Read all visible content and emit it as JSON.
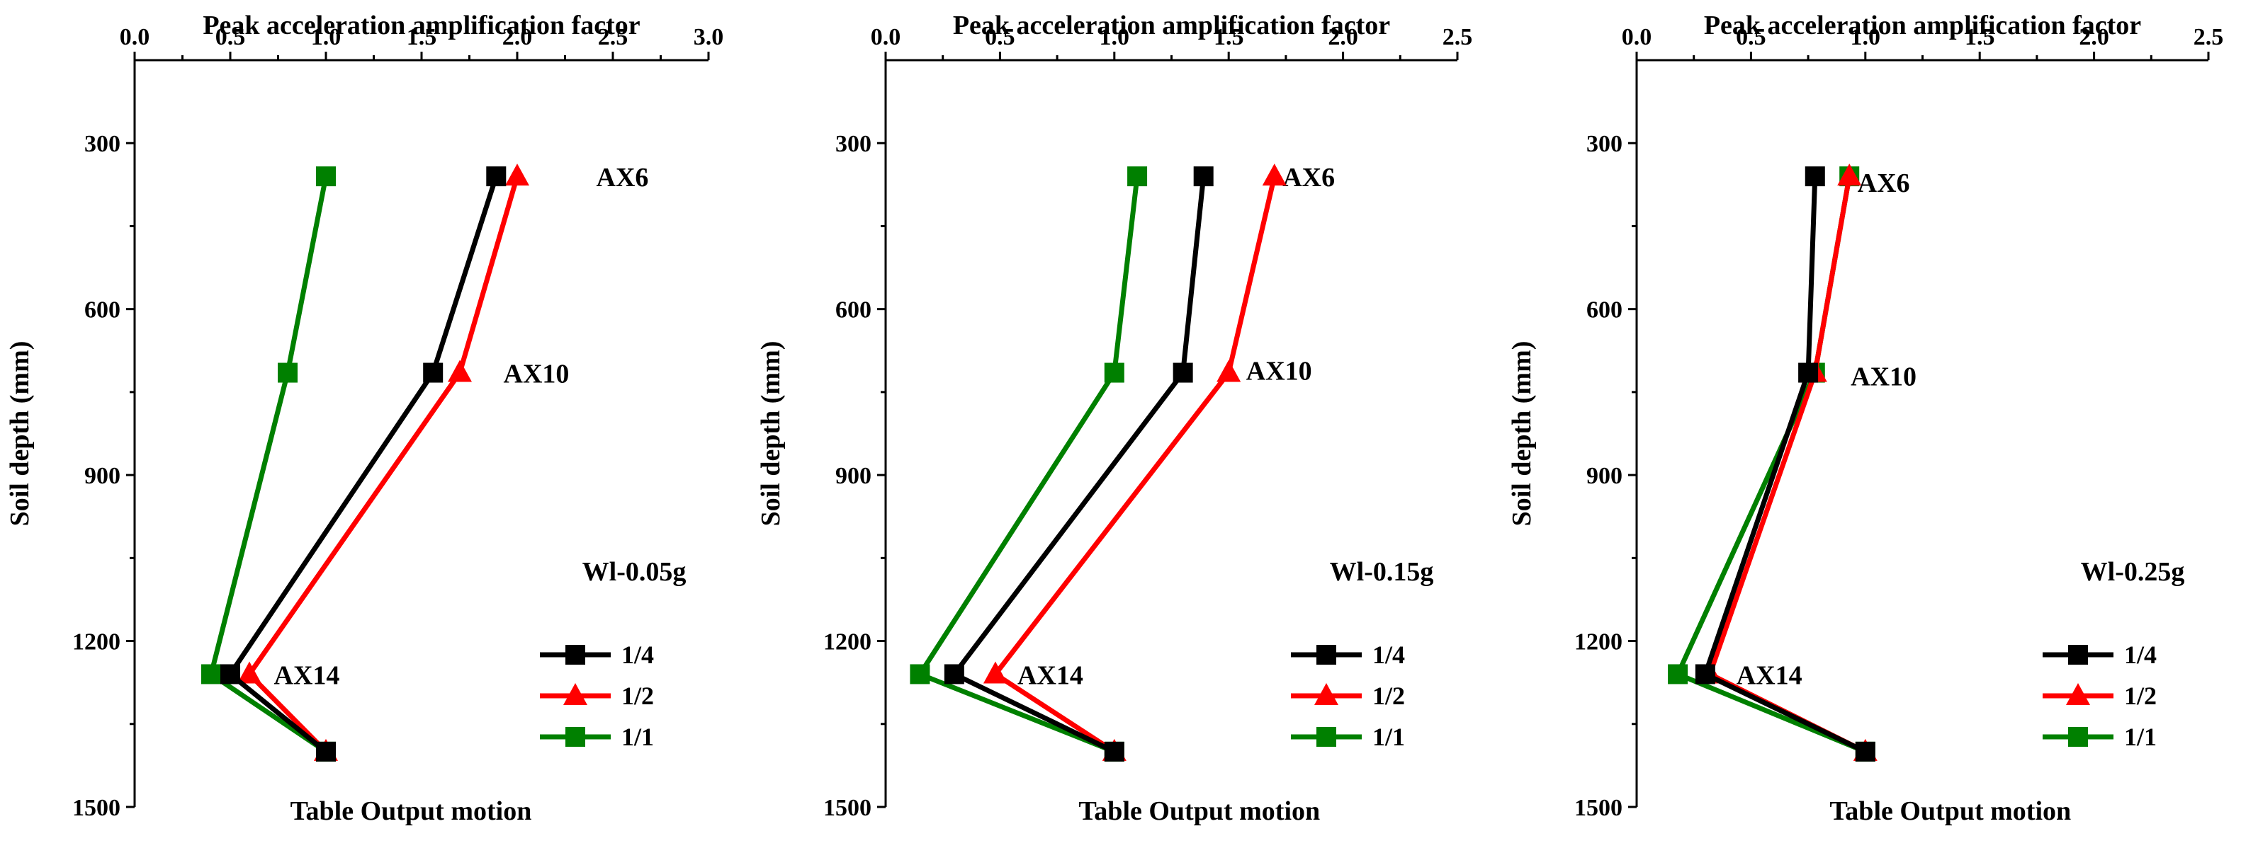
{
  "chart_data": [
    {
      "type": "line",
      "title": "",
      "top_axis_label": "Peak acceleration amplification factor",
      "ylabel": "Soil depth (mm)",
      "bottom_label": "Table Output motion",
      "xlim": [
        0,
        3.0
      ],
      "x_ticks": [
        "0.0",
        "0.5",
        "1.0",
        "1.5",
        "2.0",
        "2.5",
        "3.0"
      ],
      "ylim": [
        1500,
        150
      ],
      "y_ticks": [
        "300",
        "600",
        "900",
        "1200",
        "1500"
      ],
      "condition_label": "Wl-0.05g",
      "annotations": [
        {
          "text": "AX6",
          "depth": 360,
          "x": 2.55
        },
        {
          "text": "AX10",
          "depth": 715,
          "x": 2.1
        },
        {
          "text": "AX14",
          "depth": 1260,
          "x": 0.9
        }
      ],
      "series": [
        {
          "name": "1/4",
          "marker": "square",
          "color": "#000000",
          "x": [
            1.89,
            1.56,
            0.5,
            1.0
          ],
          "depth": [
            360,
            715,
            1260,
            1400
          ]
        },
        {
          "name": "1/2",
          "marker": "triangle",
          "color": "#ff0000",
          "x": [
            2.0,
            1.7,
            0.6,
            1.0
          ],
          "depth": [
            360,
            715,
            1260,
            1400
          ]
        },
        {
          "name": "1/1",
          "marker": "square",
          "color": "#008000",
          "x": [
            1.0,
            0.8,
            0.4,
            1.0
          ],
          "depth": [
            360,
            715,
            1260,
            1400
          ]
        }
      ]
    },
    {
      "type": "line",
      "title": "",
      "top_axis_label": "Peak acceleration amplification factor",
      "ylabel": "Soil depth (mm)",
      "bottom_label": "Table Output motion",
      "xlim": [
        0,
        2.5
      ],
      "x_ticks": [
        "0.0",
        "0.5",
        "1.0",
        "1.5",
        "2.0",
        "2.5"
      ],
      "ylim": [
        1500,
        150
      ],
      "y_ticks": [
        "300",
        "600",
        "900",
        "1200",
        "1500"
      ],
      "condition_label": "Wl-0.15g",
      "annotations": [
        {
          "text": "AX6",
          "depth": 360,
          "x": 1.85
        },
        {
          "text": "AX10",
          "depth": 710,
          "x": 1.72
        },
        {
          "text": "AX14",
          "depth": 1260,
          "x": 0.72
        }
      ],
      "series": [
        {
          "name": "1/4",
          "marker": "square",
          "color": "#000000",
          "x": [
            1.39,
            1.3,
            0.3,
            1.0
          ],
          "depth": [
            360,
            715,
            1260,
            1400
          ]
        },
        {
          "name": "1/2",
          "marker": "triangle",
          "color": "#ff0000",
          "x": [
            1.7,
            1.5,
            0.48,
            1.0
          ],
          "depth": [
            360,
            715,
            1260,
            1400
          ]
        },
        {
          "name": "1/1",
          "marker": "square",
          "color": "#008000",
          "x": [
            1.1,
            1.0,
            0.15,
            1.0
          ],
          "depth": [
            360,
            715,
            1260,
            1400
          ]
        }
      ]
    },
    {
      "type": "line",
      "title": "",
      "top_axis_label": "Peak acceleration amplification factor",
      "ylabel": "Soil depth (mm)",
      "bottom_label": "Table Output motion",
      "xlim": [
        0,
        2.5
      ],
      "x_ticks": [
        "0.0",
        "0.5",
        "1.0",
        "1.5",
        "2.0",
        "2.5"
      ],
      "ylim": [
        1500,
        150
      ],
      "y_ticks": [
        "300",
        "600",
        "900",
        "1200",
        "1500"
      ],
      "condition_label": "Wl-0.25g",
      "annotations": [
        {
          "text": "AX6",
          "depth": 370,
          "x": 1.08
        },
        {
          "text": "AX10",
          "depth": 720,
          "x": 1.08
        },
        {
          "text": "AX14",
          "depth": 1260,
          "x": 0.58
        }
      ],
      "series": [
        {
          "name": "1/4",
          "marker": "square",
          "color": "#000000",
          "x": [
            0.78,
            0.75,
            0.3,
            1.0
          ],
          "depth": [
            360,
            715,
            1260,
            1400
          ]
        },
        {
          "name": "1/2",
          "marker": "triangle",
          "color": "#ff0000",
          "x": [
            0.93,
            0.78,
            0.32,
            1.0
          ],
          "depth": [
            360,
            715,
            1260,
            1400
          ]
        },
        {
          "name": "1/1",
          "marker": "square",
          "color": "#008000",
          "x": [
            0.93,
            0.78,
            0.18,
            1.0
          ],
          "depth": [
            360,
            715,
            1260,
            1400
          ]
        }
      ]
    }
  ]
}
